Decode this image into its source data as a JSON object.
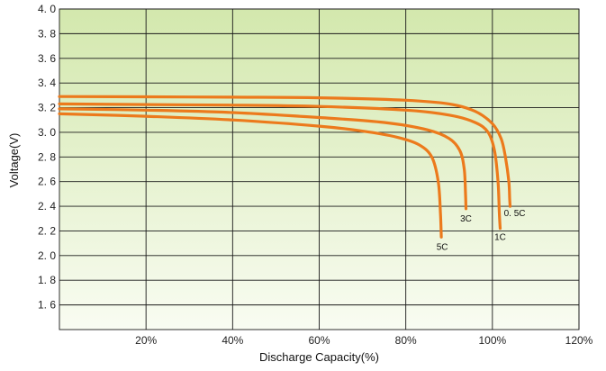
{
  "chart_data": {
    "type": "line",
    "title": "",
    "xlabel": "Discharge Capacity(%)",
    "ylabel": "Voltage(V)",
    "xlim": [
      0,
      120
    ],
    "ylim": [
      1.4,
      4.0
    ],
    "xticks": [
      20,
      40,
      60,
      80,
      100,
      120
    ],
    "xtick_labels": [
      "20%",
      "40%",
      "60%",
      "80%",
      "100%",
      "120%"
    ],
    "yticks": [
      1.6,
      1.8,
      2.0,
      2.2,
      2.4,
      2.6,
      2.8,
      3.0,
      3.2,
      3.4,
      3.6,
      3.8,
      4.0
    ],
    "ytick_labels": [
      "1. 6",
      "1. 8",
      "2. 0",
      "2. 2",
      "2. 4",
      "2. 6",
      "2. 8",
      "3. 0",
      "3. 2",
      "3. 4",
      "3. 6",
      "3. 8",
      "4. 0"
    ],
    "grid": true,
    "background": {
      "top_color": "#d3e8ad",
      "bottom_color": "#f9fcf2"
    },
    "line_color": "#ec7a1c",
    "series": [
      {
        "label": "0. 5C",
        "x": [
          0,
          20,
          40,
          60,
          80,
          90,
          96,
          100,
          102,
          103,
          103.8,
          104,
          104.1
        ],
        "y": [
          3.29,
          3.288,
          3.285,
          3.28,
          3.26,
          3.23,
          3.17,
          3.07,
          2.95,
          2.8,
          2.6,
          2.45,
          2.4
        ]
      },
      {
        "label": "1C",
        "x": [
          0,
          20,
          40,
          60,
          80,
          90,
          96,
          99,
          100.5,
          101.3,
          101.6,
          101.8
        ],
        "y": [
          3.23,
          3.225,
          3.22,
          3.21,
          3.18,
          3.14,
          3.08,
          3.0,
          2.85,
          2.6,
          2.35,
          2.22
        ]
      },
      {
        "label": "3C",
        "x": [
          0,
          20,
          40,
          60,
          75,
          85,
          90,
          92.5,
          93.5,
          93.8,
          93.9
        ],
        "y": [
          3.19,
          3.18,
          3.16,
          3.12,
          3.08,
          3.02,
          2.95,
          2.85,
          2.7,
          2.5,
          2.38
        ]
      },
      {
        "label": "5C",
        "x": [
          0,
          20,
          40,
          60,
          70,
          78,
          83,
          86,
          87.5,
          88,
          88.2
        ],
        "y": [
          3.15,
          3.13,
          3.1,
          3.05,
          3.01,
          2.96,
          2.9,
          2.8,
          2.6,
          2.35,
          2.15
        ]
      }
    ]
  }
}
